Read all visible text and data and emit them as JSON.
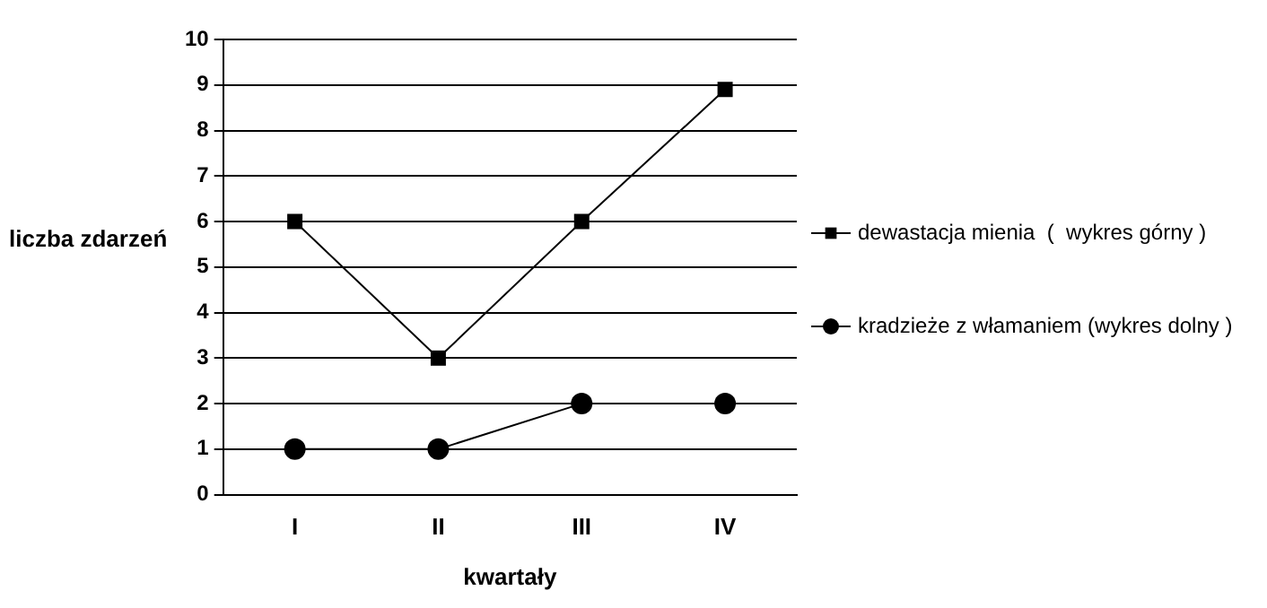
{
  "chart_data": {
    "type": "line",
    "xlabel": "kwartały",
    "ylabel": "liczba zdarzeń",
    "categories": [
      "I",
      "II",
      "III",
      "IV"
    ],
    "series": [
      {
        "name": "dewastacja mienia  (  wykres górny )",
        "color": "#000000",
        "marker": "square",
        "values": [
          6,
          3,
          6,
          8.9
        ]
      },
      {
        "name": "kradzieże z włamaniem (wykres dolny )",
        "color": "#000000",
        "marker": "circle",
        "values": [
          1,
          1,
          2,
          2
        ]
      }
    ],
    "ylim": [
      0,
      10
    ],
    "yticks": [
      0,
      1,
      2,
      3,
      4,
      5,
      6,
      7,
      8,
      9,
      10
    ],
    "grid": "y",
    "legend": "right"
  }
}
